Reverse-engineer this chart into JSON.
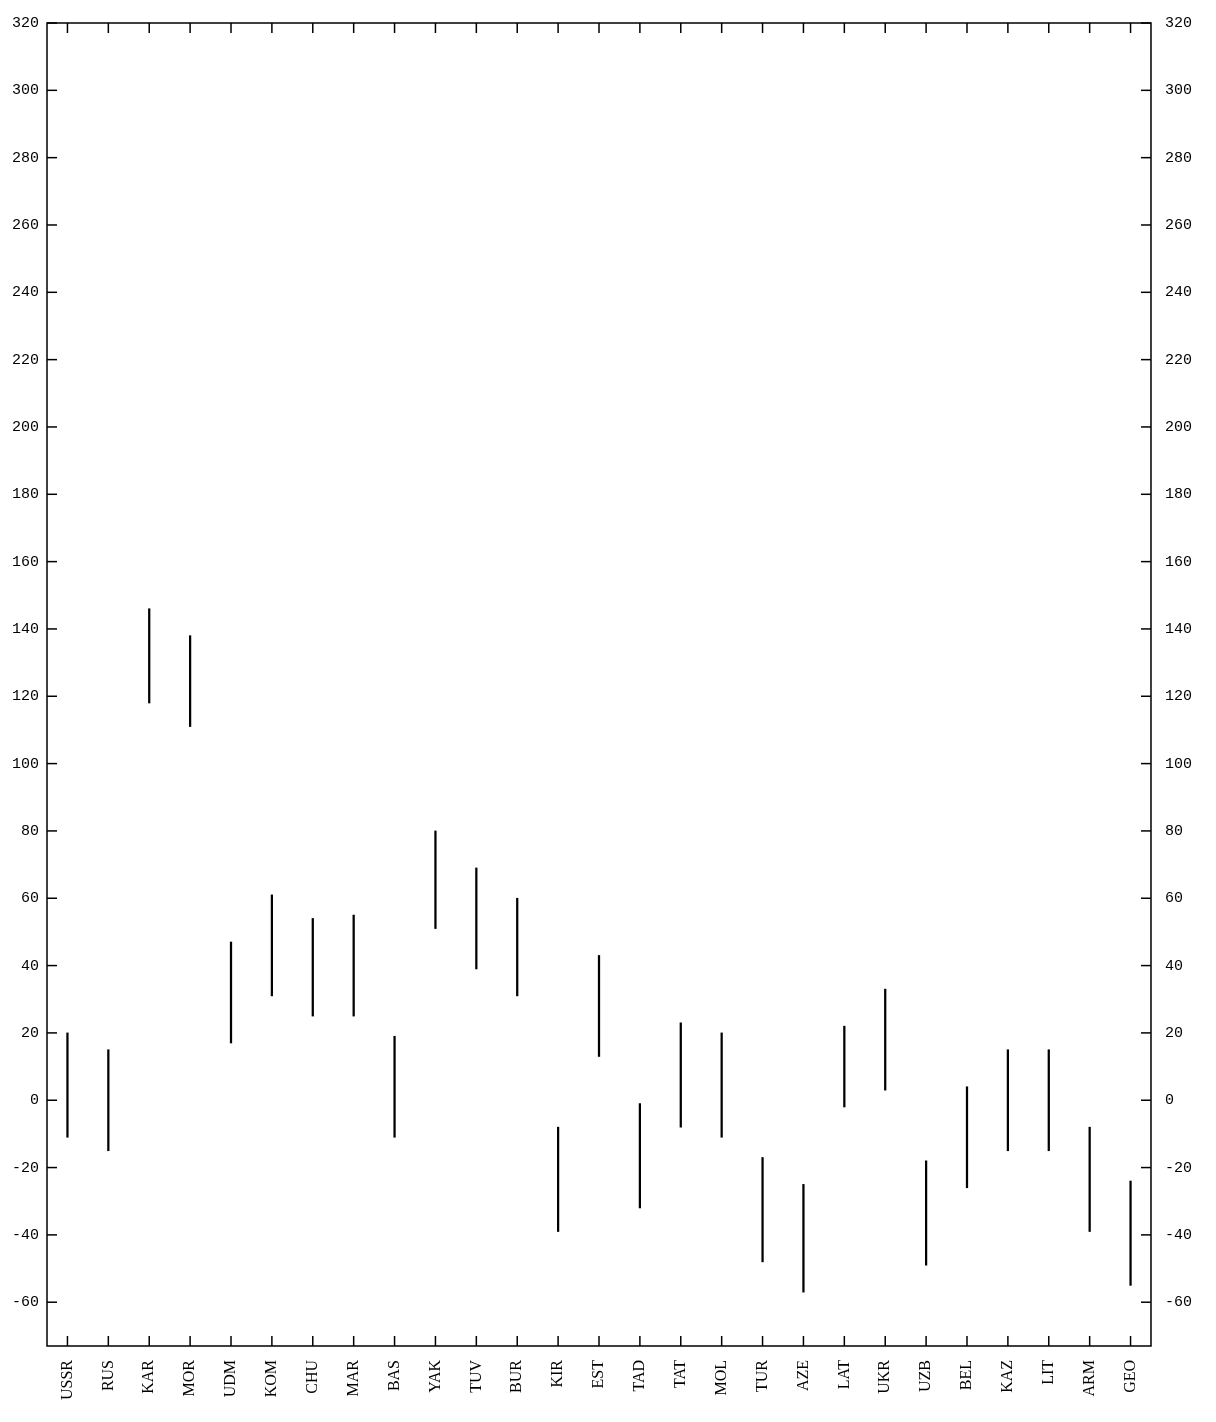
{
  "chart_data": {
    "type": "bar",
    "categories": [
      "USSR",
      "RUS",
      "KAR",
      "MOR",
      "UDM",
      "KOM",
      "CHU",
      "MAR",
      "BAS",
      "YAK",
      "TUV",
      "BUR",
      "KIR",
      "EST",
      "TAD",
      "TAT",
      "MOL",
      "TUR",
      "AZE",
      "LAT",
      "UKR",
      "UZB",
      "BEL",
      "KAZ",
      "LIT",
      "ARM",
      "GEO"
    ],
    "base": [
      -11,
      -15,
      118,
      111,
      17,
      31,
      25,
      25,
      -11,
      51,
      39,
      31,
      -39,
      13,
      -32,
      -8,
      -11,
      -48,
      -57,
      -2,
      3,
      -49,
      -26,
      -15,
      -15,
      -39,
      -55
    ],
    "values": [
      31,
      30,
      28,
      27,
      30,
      30,
      29,
      30,
      30,
      29,
      30,
      29,
      31,
      30,
      31,
      31,
      31,
      31,
      32,
      24,
      30,
      31,
      30,
      30,
      30,
      31,
      31
    ],
    "color": "#000000",
    "ylim": [
      -73,
      320
    ],
    "yticks": [
      -60,
      -40,
      -20,
      0,
      20,
      40,
      60,
      80,
      100,
      120,
      140,
      160,
      180,
      200,
      220,
      240,
      260,
      280,
      300,
      320
    ],
    "y2lim": [
      -73,
      320
    ],
    "y2ticks": [
      -60,
      -40,
      -20,
      0,
      20,
      40,
      60,
      80,
      100,
      120,
      140,
      160,
      180,
      200,
      220,
      240,
      260,
      280,
      300,
      320
    ],
    "grid": false,
    "legend": false
  }
}
